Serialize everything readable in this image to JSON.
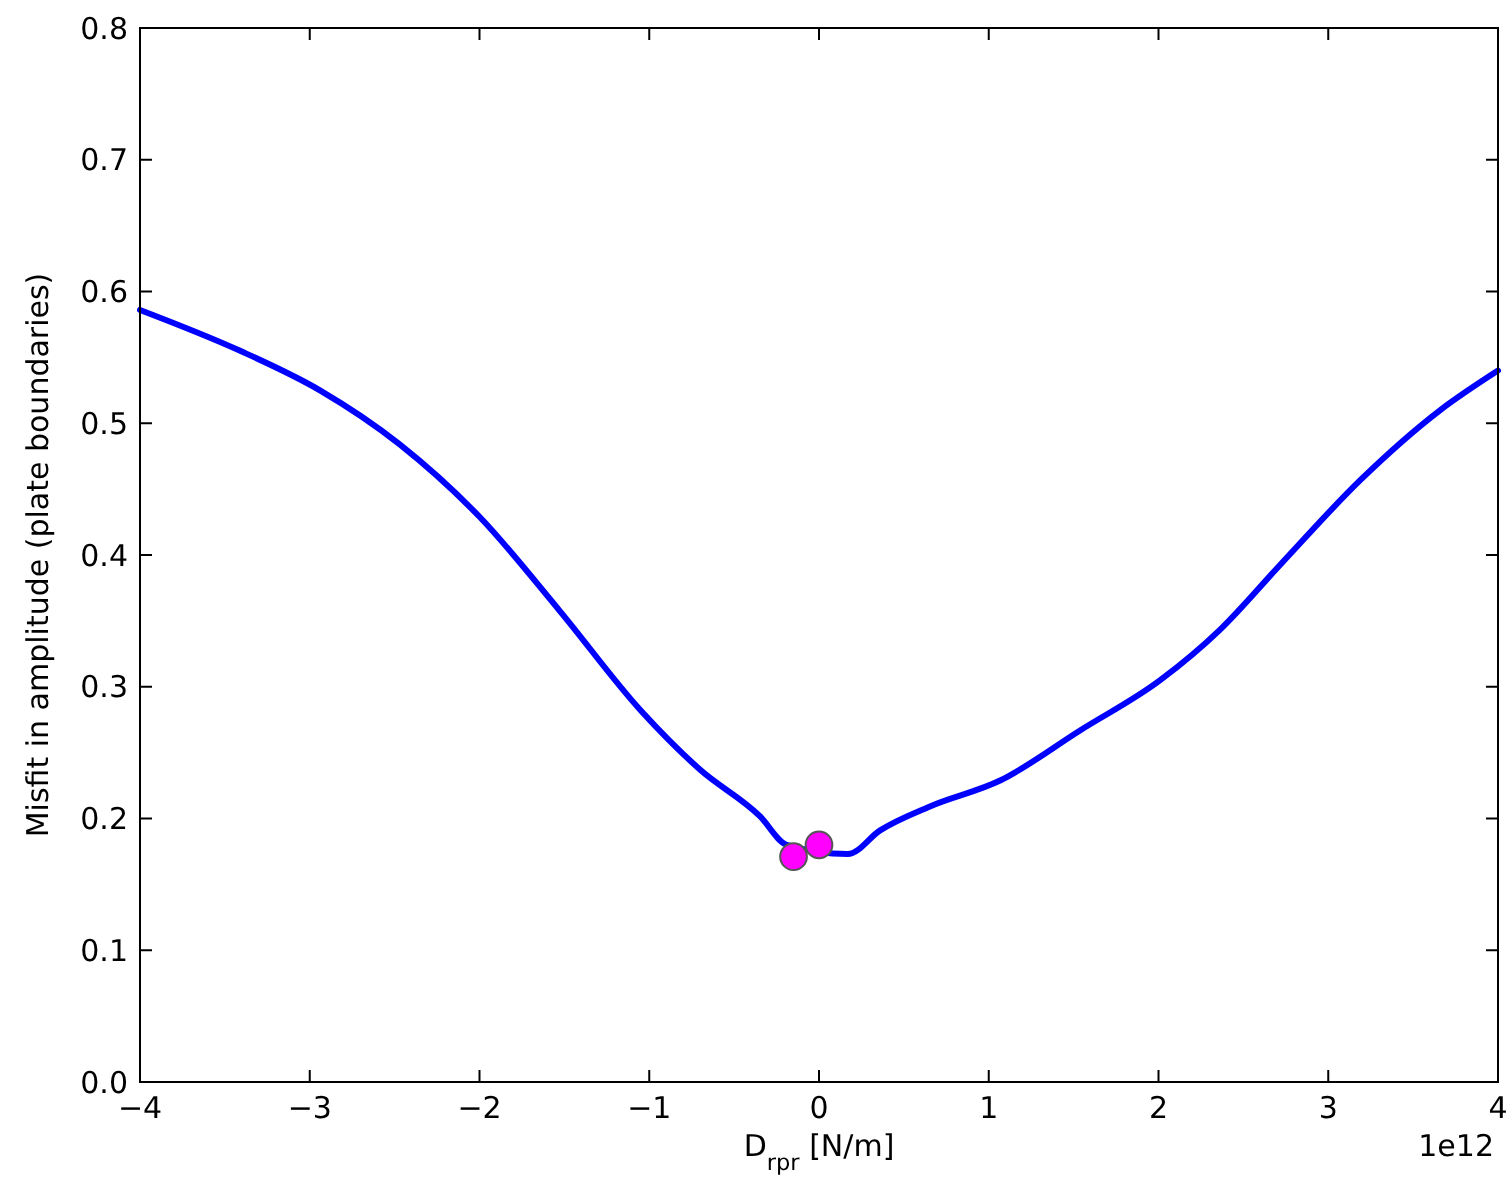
{
  "chart_data": {
    "type": "line",
    "xlabel": "D$_{rpr}$ [N/m]",
    "ylabel": "Misfit in amplitude (plate boundaries)",
    "xlim": [
      -4,
      4
    ],
    "xticks": [
      -4,
      -3,
      -2,
      -1,
      0,
      1,
      2,
      3,
      4
    ],
    "ylim": [
      0,
      0.8
    ],
    "yticks": [
      {
        "value": 0,
        "label": "0.0"
      },
      {
        "value": 0.1,
        "label": "0.1"
      },
      {
        "value": 0.2,
        "label": "0.2"
      },
      {
        "value": 0.3,
        "label": "0.3"
      },
      {
        "value": 0.4,
        "label": "0.4"
      },
      {
        "value": 0.5,
        "label": "0.5"
      },
      {
        "value": 0.6,
        "label": "0.6"
      },
      {
        "value": 0.7,
        "label": "0.7"
      },
      {
        "value": 0.8,
        "label": "0.8"
      }
    ],
    "annotations": [
      "1e12"
    ],
    "series": [
      {
        "color": "#0000ff",
        "marker": "none",
        "line_style": "solid",
        "x": [
          -4,
          -3.41,
          -2.94,
          -2.47,
          -2.0,
          -1.53,
          -1.05,
          -0.7,
          -0.35,
          -0.19,
          0.17,
          0.36,
          0.65,
          1.07,
          1.54,
          2.01,
          2.36,
          2.72,
          3.19,
          3.66,
          4
        ],
        "values": [
          0.586,
          0.555,
          0.525,
          0.484,
          0.429,
          0.358,
          0.282,
          0.237,
          0.202,
          0.18,
          0.173,
          0.191,
          0.209,
          0.229,
          0.267,
          0.305,
          0.343,
          0.393,
          0.457,
          0.51,
          0.54
        ]
      },
      {
        "type": "scatter",
        "color": "#ff00ff",
        "marker": "circle",
        "x": [
          -0.15,
          0.0
        ],
        "values": [
          0.171,
          0.18
        ]
      }
    ]
  }
}
